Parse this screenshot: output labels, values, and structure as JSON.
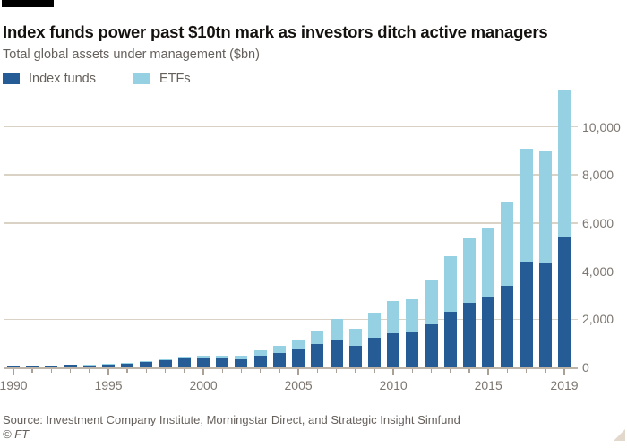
{
  "header": {
    "title": "Index funds power past $10tn mark as investors ditch active managers",
    "subtitle": "Total global assets under management ($bn)"
  },
  "legend": {
    "items": [
      {
        "label": "Index funds",
        "color": "#255c96"
      },
      {
        "label": "ETFs",
        "color": "#95d1e3"
      }
    ]
  },
  "chart_data": {
    "type": "bar",
    "stacked": true,
    "title": "Index funds power past $10tn mark as investors ditch active managers",
    "subtitle": "Total global assets under management ($bn)",
    "xlabel": "",
    "ylabel": "Total global assets under management ($bn)",
    "x": [
      1990,
      1991,
      1992,
      1993,
      1994,
      1995,
      1996,
      1997,
      1998,
      1999,
      2000,
      2001,
      2002,
      2003,
      2004,
      2005,
      2006,
      2007,
      2008,
      2009,
      2010,
      2011,
      2012,
      2013,
      2014,
      2015,
      2016,
      2017,
      2018,
      2019
    ],
    "series": [
      {
        "name": "Index funds",
        "color": "#255c96",
        "values": [
          25,
          45,
          70,
          95,
          110,
          140,
          175,
          245,
          310,
          420,
          425,
          370,
          330,
          480,
          590,
          730,
          950,
          1150,
          900,
          1230,
          1430,
          1480,
          1800,
          2300,
          2680,
          2900,
          3400,
          4400,
          4330,
          5400
        ]
      },
      {
        "name": "ETFs",
        "color": "#95d1e3",
        "values": [
          0,
          0,
          0,
          2,
          3,
          5,
          10,
          20,
          35,
          45,
          75,
          105,
          140,
          210,
          310,
          420,
          580,
          850,
          710,
          1040,
          1320,
          1360,
          1850,
          2300,
          2680,
          2900,
          3450,
          4700,
          4690,
          6150
        ]
      }
    ],
    "ylim": [
      0,
      11600
    ],
    "yticks": [
      {
        "value": 0,
        "label": "0"
      },
      {
        "value": 2000,
        "label": "2,000"
      },
      {
        "value": 4000,
        "label": "4,000"
      },
      {
        "value": 6000,
        "label": "6,000"
      },
      {
        "value": 8000,
        "label": "8,000"
      },
      {
        "value": 10000,
        "label": "10,000"
      }
    ],
    "xticks": [
      {
        "year": 1990,
        "label": "1990"
      },
      {
        "year": 1995,
        "label": "1995"
      },
      {
        "year": 2000,
        "label": "2000"
      },
      {
        "year": 2005,
        "label": "2005"
      },
      {
        "year": 2010,
        "label": "2010"
      },
      {
        "year": 2015,
        "label": "2015"
      },
      {
        "year": 2019,
        "label": "2019"
      }
    ],
    "grid": true,
    "legend_position": "top-left",
    "y_axis_side": "right"
  },
  "footer": {
    "source": "Source: Investment Company Institute, Morningstar Direct, and Strategic Insight Simfund",
    "credit": "© FT"
  },
  "colors": {
    "index_funds": "#255c96",
    "etfs": "#95d1e3",
    "gridline": "#dbd2c6",
    "baseline": "#bdb3a7",
    "axis_text": "#7d7670",
    "secondary_text": "#66605c",
    "title_text": "#14110f",
    "brand_bar": "#000000",
    "corner_triangle": "#e2d8cc"
  }
}
